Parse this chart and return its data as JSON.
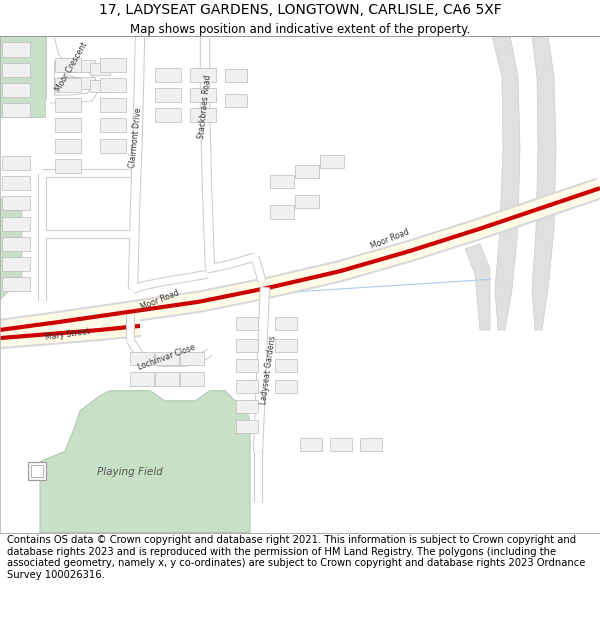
{
  "title": "17, LADYSEAT GARDENS, LONGTOWN, CARLISLE, CA6 5XF",
  "subtitle": "Map shows position and indicative extent of the property.",
  "footer": "Contains OS data © Crown copyright and database right 2021. This information is subject to Crown copyright and database rights 2023 and is reproduced with the permission of HM Land Registry. The polygons (including the associated geometry, namely x, y co-ordinates) are subject to Crown copyright and database rights 2023 Ordnance Survey 100026316.",
  "map_bg": "#ffffff",
  "building_fill": "#f0f0f0",
  "building_stroke": "#bbbbbb",
  "green_fill": "#c8dfc8",
  "green_stroke": "#b0c8b0",
  "title_fontsize": 10,
  "subtitle_fontsize": 8.5,
  "footer_fontsize": 7.2,
  "label_fontsize": 5.5
}
